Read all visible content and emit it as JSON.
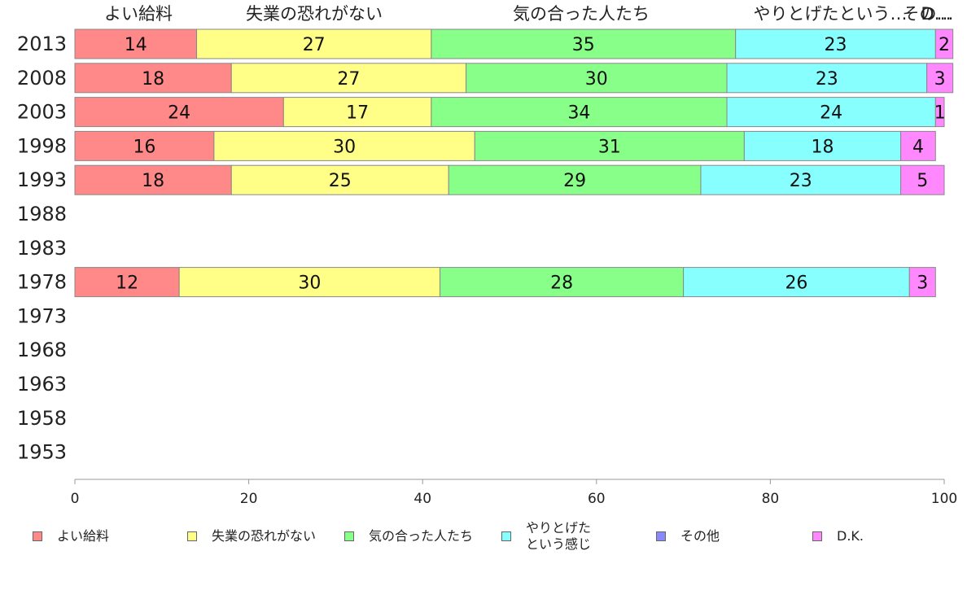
{
  "chart_data": {
    "type": "bar",
    "orientation": "horizontal",
    "stacked": true,
    "categories": [
      "2013",
      "2008",
      "2003",
      "1998",
      "1993",
      "1988",
      "1983",
      "1978",
      "1973",
      "1968",
      "1963",
      "1958",
      "1953"
    ],
    "series": [
      {
        "name": "よい給料",
        "color": "#ff8888",
        "values": [
          14,
          18,
          24,
          16,
          18,
          null,
          null,
          12,
          null,
          null,
          null,
          null,
          null
        ]
      },
      {
        "name": "失業の恐れがない",
        "color": "#ffff88",
        "values": [
          27,
          27,
          17,
          30,
          25,
          null,
          null,
          30,
          null,
          null,
          null,
          null,
          null
        ]
      },
      {
        "name": "気の合った人たち",
        "color": "#88ff88",
        "values": [
          35,
          30,
          34,
          31,
          29,
          null,
          null,
          28,
          null,
          null,
          null,
          null,
          null
        ]
      },
      {
        "name": "やりとげたという感じ",
        "color": "#88ffff",
        "values": [
          23,
          23,
          24,
          18,
          23,
          null,
          null,
          26,
          null,
          null,
          null,
          null,
          null
        ]
      },
      {
        "name": "その他",
        "color": "#8888ff",
        "values": [
          0,
          0,
          0,
          0,
          0,
          null,
          null,
          0,
          null,
          null,
          null,
          null,
          null
        ]
      },
      {
        "name": "D.K.",
        "color": "#ff88ff",
        "values": [
          2,
          3,
          1,
          4,
          5,
          null,
          null,
          3,
          null,
          null,
          null,
          null,
          null
        ]
      }
    ],
    "top_labels": [
      "よい給料",
      "失業の恐れがない",
      "気の合った人たち",
      "やりとげたという…",
      "その…",
      "D…"
    ],
    "xlim": [
      0,
      100
    ],
    "xticks": [
      0,
      20,
      40,
      60,
      80,
      100
    ],
    "legend": {
      "placement": "bottom",
      "labels": [
        "よい給料",
        "失業の恐れがない",
        "気の合った人たち",
        "やりとげた\nという感じ",
        "その他",
        "D.K."
      ]
    },
    "grid": false
  }
}
